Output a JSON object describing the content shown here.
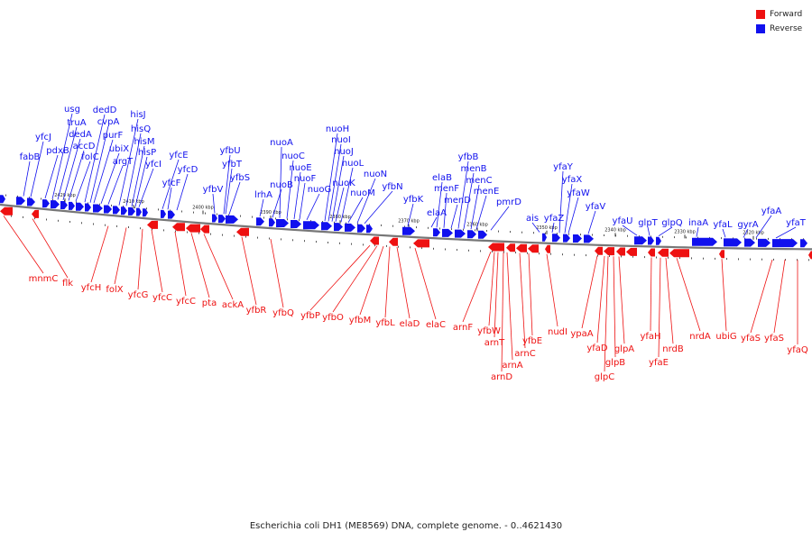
{
  "legend": {
    "items": [
      {
        "label": "Forward",
        "color": "#ee1111"
      },
      {
        "label": "Reverse",
        "color": "#1111ee"
      }
    ]
  },
  "caption": "Escherichia coli DH1 (ME8569) DNA, complete genome. - 0..4621430",
  "colors": {
    "forward": "#ee1111",
    "reverse": "#1111ee",
    "backbone": "#777777"
  },
  "chart_data": {
    "type": "genome-map",
    "scale_labels": [
      "2420 kbp",
      "2410 kbp",
      "2400 kbp",
      "2390 kbp",
      "2380 kbp",
      "2370 kbp",
      "2360 kbp",
      "2350 kbp",
      "2340 kbp",
      "2330 kbp",
      "2320 kbp"
    ],
    "reverse_genes": [
      "fabB",
      "yfcJ",
      "pdxB",
      "usg",
      "truA",
      "dedA",
      "accD",
      "folC",
      "dedD",
      "cvpA",
      "purF",
      "ubiX",
      "argT",
      "hisJ",
      "hisQ",
      "hisM",
      "hisP",
      "yfcI",
      "yfcE",
      "yfcF",
      "yfcD",
      "yfbV",
      "yfbU",
      "yfbT",
      "yfbS",
      "lrhA",
      "nuoB",
      "nuoA",
      "nuoC",
      "nuoE",
      "nuoF",
      "nuoG",
      "nuoH",
      "nuoI",
      "nuoJ",
      "nuoK",
      "nuoL",
      "nuoM",
      "nuoN",
      "yfbN",
      "elaA",
      "elaB",
      "yfbK",
      "menF",
      "menD",
      "yfbB",
      "menB",
      "menC",
      "menE",
      "pmrD",
      "ais",
      "yfaZ",
      "yfaY",
      "yfaX",
      "yfaW",
      "yfaV",
      "yfaU",
      "glpT",
      "glpQ",
      "inaA",
      "yfaL",
      "gyrA",
      "yfaA",
      "yfaT"
    ],
    "forward_genes": [
      "mnmC",
      "flk",
      "yfcH",
      "folX",
      "yfcG",
      "yfcC",
      "yfcC",
      "pta",
      "ackA",
      "yfbR",
      "yfbQ",
      "yfbP",
      "yfbO",
      "yfbM",
      "yfbL",
      "elaD",
      "elaC",
      "arnF",
      "yfbW",
      "arnT",
      "arnA",
      "arnD",
      "arnC",
      "yfbE",
      "nudI",
      "ypaA",
      "yfaD",
      "glpB",
      "glpC",
      "glpA",
      "yfaH",
      "yfaE",
      "nrdB",
      "nrdA",
      "ubiG",
      "yfaS",
      "yfaS",
      "yfaQ"
    ]
  }
}
